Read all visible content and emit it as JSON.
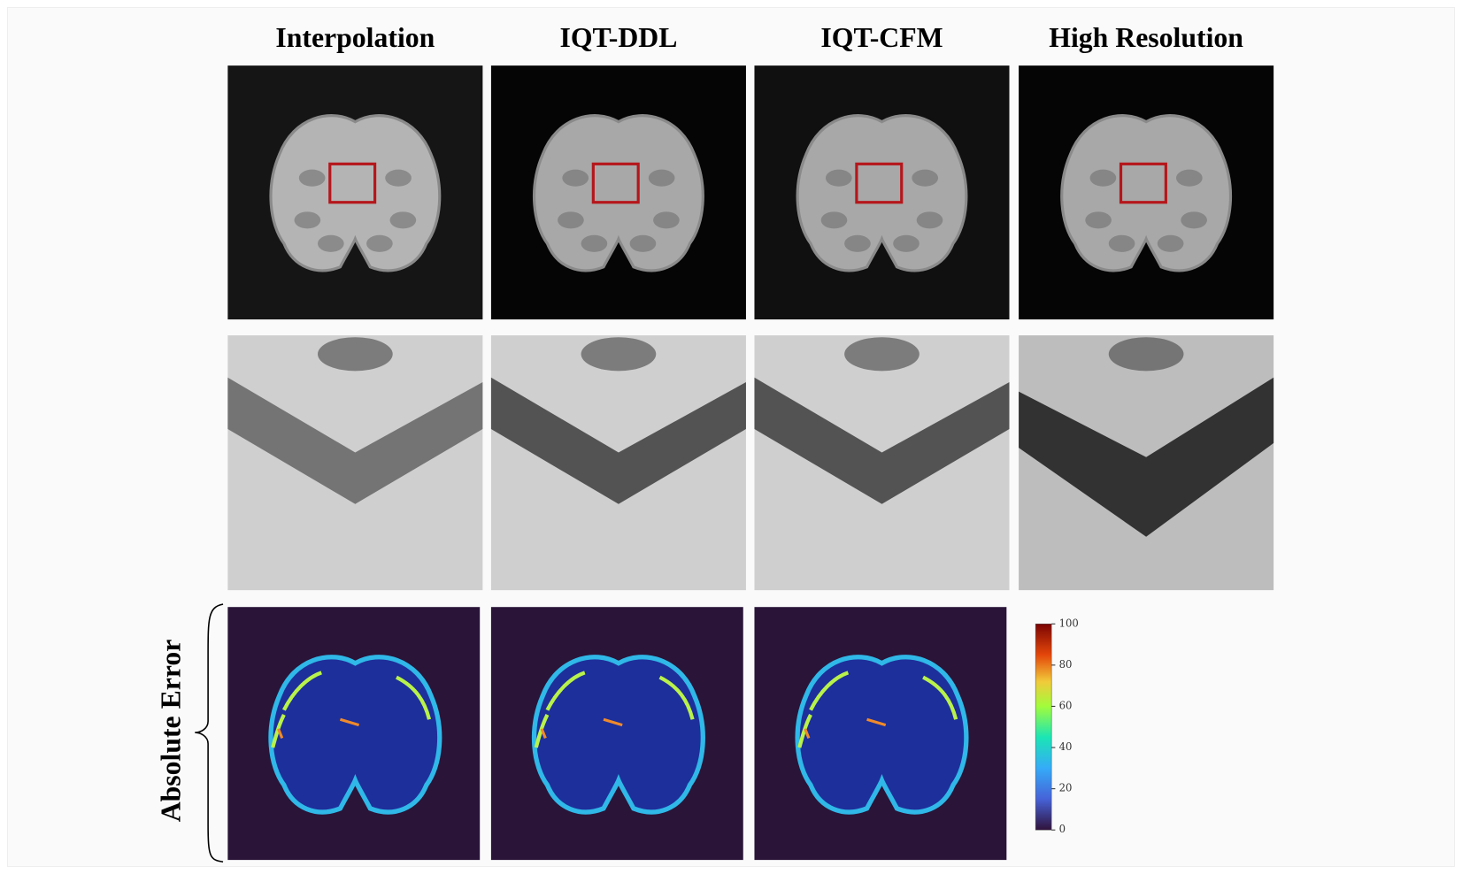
{
  "columns": [
    "Interpolation",
    "IQT-DDL",
    "IQT-CFM",
    "High Resolution"
  ],
  "row_label": "Absolute Error",
  "colorbar": {
    "range": [
      0,
      100
    ],
    "ticks": [
      0,
      20,
      40,
      60,
      80,
      100
    ]
  }
}
